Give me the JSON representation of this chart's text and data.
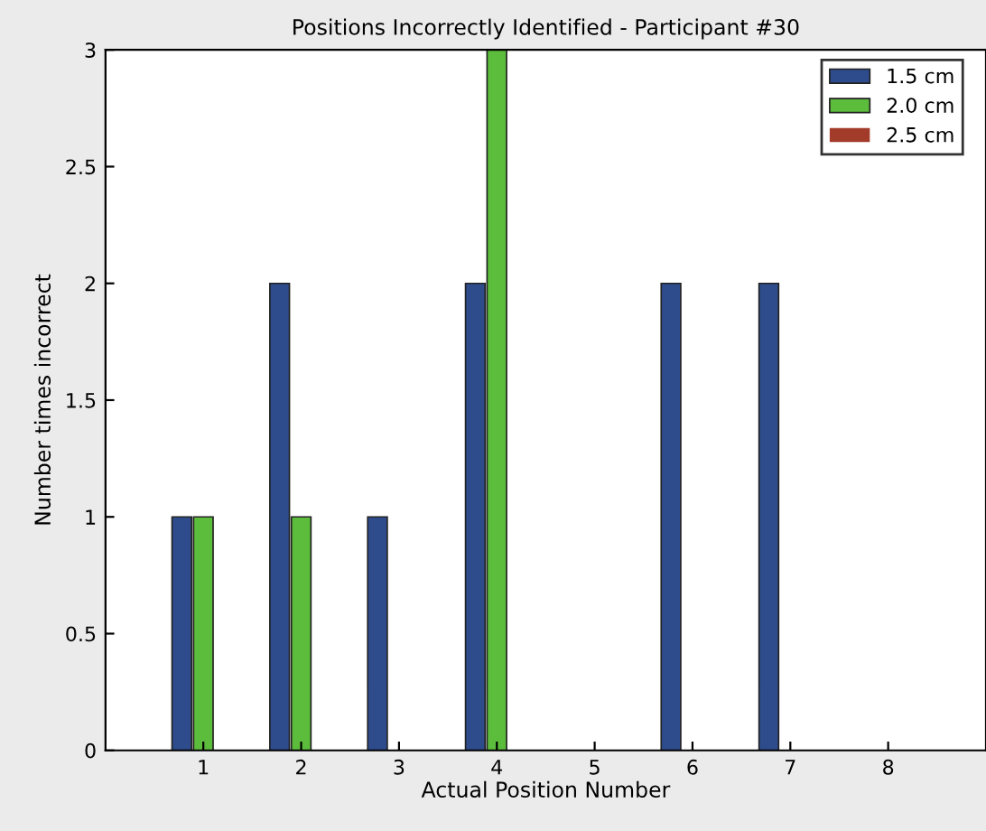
{
  "chart_data": {
    "type": "bar",
    "title": "Positions Incorrectly Identified - Participant #30",
    "xlabel": "Actual Position Number",
    "ylabel": "Number times incorrect",
    "x": [
      1,
      2,
      3,
      4,
      5,
      6,
      7,
      8
    ],
    "series": [
      {
        "name": "1.5 cm",
        "color": "#2e4c8c",
        "values": [
          1,
          2,
          1,
          2,
          0,
          2,
          2,
          0
        ]
      },
      {
        "name": "2.0 cm",
        "color": "#5cbc3c",
        "values": [
          1,
          1,
          0,
          3,
          0,
          0,
          0,
          0
        ]
      },
      {
        "name": "2.5 cm",
        "color": "#a33b2b",
        "values": [
          0,
          0,
          0,
          0,
          0,
          0,
          0,
          0
        ]
      }
    ],
    "xlim": [
      0,
      9
    ],
    "xticks": [
      1,
      2,
      3,
      4,
      5,
      6,
      7,
      8
    ],
    "ylim": [
      0,
      3
    ],
    "yticks": [
      0,
      0.5,
      1,
      1.5,
      2,
      2.5,
      3
    ],
    "grid": false,
    "legend": "top right"
  }
}
